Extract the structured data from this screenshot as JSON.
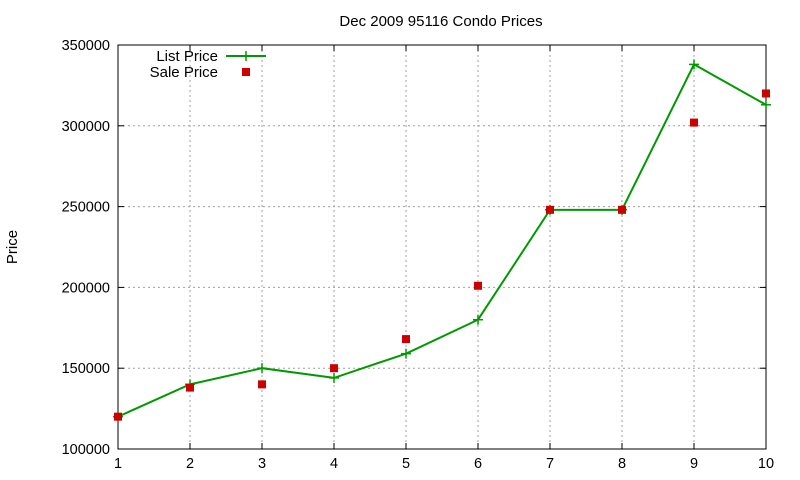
{
  "chart_data": {
    "type": "line",
    "title": "Dec 2009 95116 Condo Prices",
    "xlabel": "",
    "ylabel": "Price",
    "xlim": [
      1,
      10
    ],
    "ylim": [
      100000,
      350000
    ],
    "x_ticks": [
      1,
      2,
      3,
      4,
      5,
      6,
      7,
      8,
      9,
      10
    ],
    "y_ticks": [
      100000,
      150000,
      200000,
      250000,
      300000,
      350000
    ],
    "grid": true,
    "legend_position": "top-left",
    "series": [
      {
        "name": "List Price",
        "style": "line-with-plus-markers",
        "color": "#009900",
        "x": [
          1,
          2,
          3,
          4,
          5,
          6,
          7,
          8,
          9,
          10
        ],
        "y": [
          120000,
          140000,
          150000,
          144000,
          159000,
          180000,
          248000,
          248000,
          338000,
          313000
        ]
      },
      {
        "name": "Sale Price",
        "style": "square-markers",
        "color": "#cc0000",
        "x": [
          1,
          2,
          3,
          4,
          5,
          6,
          7,
          8,
          9,
          10
        ],
        "y": [
          120000,
          138000,
          140000,
          150000,
          168000,
          201000,
          248000,
          248000,
          302000,
          320000
        ]
      }
    ]
  }
}
